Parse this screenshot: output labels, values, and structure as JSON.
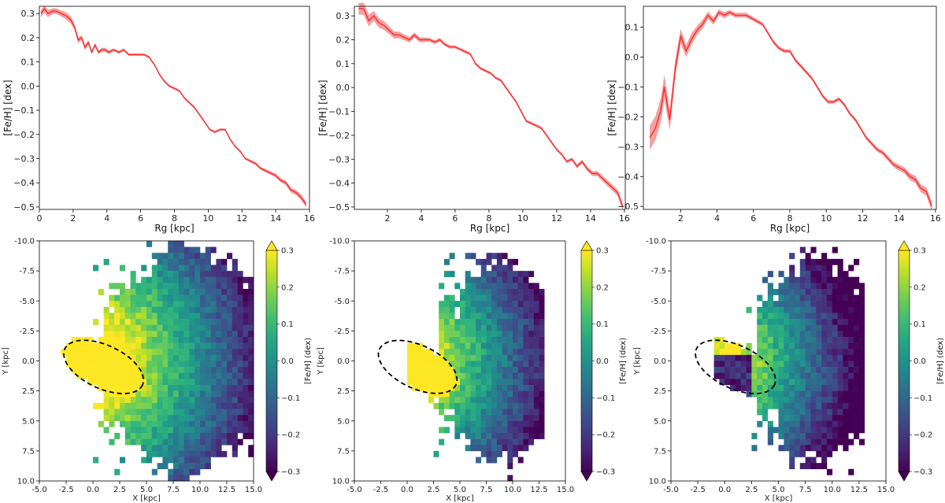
{
  "chart_data": [
    {
      "type": "line",
      "panel": "top-left",
      "xlabel": "Rg [kpc]",
      "ylabel": "[Fe/H] [dex]",
      "xlim": [
        0,
        16
      ],
      "ylim": [
        -0.51,
        0.33
      ],
      "xticks": [
        0,
        2,
        4,
        6,
        8,
        10,
        12,
        14,
        16
      ],
      "yticks": [
        -0.5,
        -0.4,
        -0.3,
        -0.2,
        -0.1,
        0.0,
        0.1,
        0.2,
        0.3
      ],
      "line_color": "#ff2a2a",
      "band_color": "#f4a0a0",
      "series": [
        {
          "x": [
            0.1,
            0.3,
            0.5,
            0.8,
            1.0,
            1.3,
            1.6,
            1.9,
            2.1,
            2.3,
            2.5,
            2.7,
            2.9,
            3.1,
            3.3,
            3.5,
            3.7,
            3.9,
            4.1,
            4.4,
            4.7,
            5.0,
            5.3,
            5.6,
            5.9,
            6.2,
            6.5,
            6.8,
            7.1,
            7.4,
            7.7,
            8.0,
            8.3,
            8.6,
            8.9,
            9.2,
            9.5,
            9.8,
            10.1,
            10.4,
            10.7,
            11.0,
            11.3,
            11.6,
            11.9,
            12.2,
            12.5,
            12.8,
            13.1,
            13.4,
            13.7,
            14.0,
            14.3,
            14.6,
            14.9,
            15.2,
            15.5,
            15.8
          ],
          "y": [
            0.3,
            0.32,
            0.3,
            0.31,
            0.31,
            0.3,
            0.29,
            0.27,
            0.24,
            0.19,
            0.2,
            0.16,
            0.18,
            0.14,
            0.17,
            0.14,
            0.15,
            0.15,
            0.14,
            0.15,
            0.14,
            0.15,
            0.13,
            0.13,
            0.13,
            0.13,
            0.12,
            0.09,
            0.05,
            0.02,
            0.0,
            -0.01,
            -0.02,
            -0.05,
            -0.07,
            -0.09,
            -0.12,
            -0.15,
            -0.18,
            -0.19,
            -0.18,
            -0.18,
            -0.22,
            -0.25,
            -0.27,
            -0.3,
            -0.31,
            -0.32,
            -0.34,
            -0.35,
            -0.36,
            -0.37,
            -0.39,
            -0.4,
            -0.43,
            -0.44,
            -0.46,
            -0.49
          ],
          "err": [
            0.015,
            0.015,
            0.015,
            0.012,
            0.012,
            0.012,
            0.015,
            0.015,
            0.012,
            0.012,
            0.01,
            0.01,
            0.01,
            0.008,
            0.008,
            0.008,
            0.008,
            0.008,
            0.008,
            0.006,
            0.006,
            0.006,
            0.005,
            0.005,
            0.005,
            0.005,
            0.005,
            0.005,
            0.005,
            0.005,
            0.005,
            0.005,
            0.005,
            0.005,
            0.005,
            0.005,
            0.005,
            0.005,
            0.005,
            0.005,
            0.005,
            0.005,
            0.005,
            0.005,
            0.005,
            0.005,
            0.006,
            0.006,
            0.006,
            0.007,
            0.007,
            0.008,
            0.008,
            0.009,
            0.01,
            0.01,
            0.012,
            0.012
          ]
        }
      ]
    },
    {
      "type": "line",
      "panel": "top-middle",
      "xlabel": "Rg [kpc]",
      "ylabel": "[Fe/H] [dex]",
      "xlim": [
        0.05,
        16.05
      ],
      "ylim": [
        -0.51,
        0.34
      ],
      "xticks": [
        2,
        4,
        6,
        8,
        10,
        12,
        14,
        16
      ],
      "yticks": [
        -0.5,
        -0.4,
        -0.3,
        -0.2,
        -0.1,
        0.0,
        0.1,
        0.2,
        0.3
      ],
      "line_color": "#ff2a2a",
      "band_color": "#f4a0a0",
      "series": [
        {
          "x": [
            0.3,
            0.6,
            0.9,
            1.2,
            1.5,
            1.8,
            2.1,
            2.4,
            2.7,
            3.0,
            3.3,
            3.6,
            3.9,
            4.2,
            4.5,
            4.8,
            5.1,
            5.4,
            5.7,
            6.0,
            6.3,
            6.6,
            6.9,
            7.2,
            7.5,
            7.8,
            8.1,
            8.4,
            8.7,
            9.0,
            9.3,
            9.6,
            9.9,
            10.2,
            10.5,
            10.8,
            11.1,
            11.4,
            11.7,
            12.0,
            12.3,
            12.6,
            12.9,
            13.2,
            13.5,
            13.8,
            14.1,
            14.4,
            14.7,
            15.0,
            15.3,
            15.6,
            15.9
          ],
          "y": [
            0.33,
            0.33,
            0.28,
            0.3,
            0.27,
            0.26,
            0.24,
            0.22,
            0.22,
            0.21,
            0.2,
            0.22,
            0.2,
            0.2,
            0.2,
            0.19,
            0.2,
            0.18,
            0.17,
            0.17,
            0.16,
            0.15,
            0.14,
            0.1,
            0.08,
            0.07,
            0.06,
            0.04,
            0.03,
            0.0,
            -0.03,
            -0.06,
            -0.1,
            -0.14,
            -0.15,
            -0.16,
            -0.17,
            -0.2,
            -0.23,
            -0.26,
            -0.28,
            -0.31,
            -0.3,
            -0.33,
            -0.31,
            -0.34,
            -0.36,
            -0.36,
            -0.38,
            -0.4,
            -0.42,
            -0.44,
            -0.5
          ],
          "err": [
            0.025,
            0.025,
            0.025,
            0.02,
            0.02,
            0.018,
            0.016,
            0.015,
            0.014,
            0.012,
            0.012,
            0.01,
            0.01,
            0.01,
            0.008,
            0.008,
            0.008,
            0.007,
            0.007,
            0.006,
            0.006,
            0.006,
            0.006,
            0.006,
            0.006,
            0.006,
            0.006,
            0.006,
            0.006,
            0.006,
            0.006,
            0.006,
            0.006,
            0.006,
            0.006,
            0.006,
            0.006,
            0.006,
            0.006,
            0.006,
            0.006,
            0.007,
            0.007,
            0.008,
            0.008,
            0.009,
            0.01,
            0.01,
            0.012,
            0.012,
            0.013,
            0.014,
            0.015
          ]
        }
      ]
    },
    {
      "type": "line",
      "panel": "top-right",
      "xlabel": "Rg [kpc]",
      "ylabel": "[Fe/H] [dex]",
      "xlim": [
        -0.05,
        16.05
      ],
      "ylim": [
        -0.51,
        0.17
      ],
      "xticks": [
        2,
        4,
        6,
        8,
        10,
        12,
        14,
        16
      ],
      "yticks": [
        -0.5,
        -0.4,
        -0.3,
        -0.2,
        -0.1,
        0.0,
        0.1
      ],
      "line_color": "#ff2a2a",
      "band_color": "#f4a0a0",
      "series": [
        {
          "x": [
            0.3,
            0.6,
            0.9,
            1.1,
            1.4,
            1.7,
            2.0,
            2.3,
            2.6,
            2.9,
            3.2,
            3.5,
            3.8,
            4.1,
            4.4,
            4.7,
            5.0,
            5.3,
            5.6,
            5.9,
            6.2,
            6.5,
            6.8,
            7.1,
            7.4,
            7.7,
            8.0,
            8.3,
            8.6,
            8.9,
            9.2,
            9.5,
            9.8,
            10.1,
            10.4,
            10.7,
            11.0,
            11.3,
            11.6,
            11.9,
            12.2,
            12.5,
            12.8,
            13.1,
            13.4,
            13.7,
            14.0,
            14.3,
            14.6,
            14.9,
            15.2,
            15.5,
            15.8
          ],
          "y": [
            -0.27,
            -0.24,
            -0.18,
            -0.1,
            -0.21,
            -0.04,
            0.07,
            0.02,
            0.06,
            0.09,
            0.11,
            0.14,
            0.12,
            0.15,
            0.14,
            0.15,
            0.14,
            0.14,
            0.14,
            0.13,
            0.12,
            0.11,
            0.08,
            0.05,
            0.03,
            0.02,
            0.02,
            -0.01,
            -0.03,
            -0.05,
            -0.07,
            -0.1,
            -0.13,
            -0.15,
            -0.15,
            -0.14,
            -0.16,
            -0.19,
            -0.21,
            -0.24,
            -0.27,
            -0.29,
            -0.31,
            -0.32,
            -0.34,
            -0.36,
            -0.37,
            -0.38,
            -0.4,
            -0.41,
            -0.44,
            -0.45,
            -0.5
          ],
          "err": [
            0.04,
            0.04,
            0.04,
            0.04,
            0.035,
            0.03,
            0.025,
            0.02,
            0.02,
            0.015,
            0.015,
            0.012,
            0.012,
            0.01,
            0.01,
            0.008,
            0.008,
            0.008,
            0.008,
            0.007,
            0.007,
            0.006,
            0.006,
            0.006,
            0.006,
            0.006,
            0.006,
            0.006,
            0.006,
            0.006,
            0.006,
            0.006,
            0.006,
            0.006,
            0.006,
            0.006,
            0.006,
            0.006,
            0.006,
            0.006,
            0.006,
            0.007,
            0.007,
            0.008,
            0.008,
            0.009,
            0.01,
            0.01,
            0.012,
            0.012,
            0.013,
            0.014,
            0.015
          ]
        }
      ]
    },
    {
      "type": "heatmap",
      "panel": "bottom-left",
      "xlabel": "X [kpc]",
      "ylabel": "Y [kpc]",
      "colorbar_label": "[Fe/H] (dex)",
      "xlim": [
        -5,
        15
      ],
      "ylim": [
        10,
        -10
      ],
      "xticks": [
        "-5.0",
        "-2.5",
        "0.0",
        "2.5",
        "5.0",
        "7.5",
        "10.0",
        "12.5",
        "15.0"
      ],
      "yticks": [
        "-10.0",
        "-7.5",
        "-5.0",
        "-2.5",
        "0.0",
        "2.5",
        "5.0",
        "7.5",
        "10.0"
      ],
      "colorbar_ticks": [
        "0.3",
        "0.2",
        "0.1",
        "0.0",
        "−0.1",
        "−0.2",
        "−0.3"
      ],
      "vmin": -0.3,
      "vmax": 0.3,
      "colormap": "viridis",
      "ellipse": {
        "cx": 1.0,
        "cy": 0.5,
        "rx": 4.0,
        "ry": 1.8,
        "angle_deg": 25
      },
      "profile": {
        "a": 0.45,
        "b": 0.046,
        "bar_boost": 0.22
      },
      "extent": {
        "xmin": 1.2,
        "xmax": 15.0,
        "halfwidth_base": 6.5,
        "halfwidth_peak": 9.8,
        "bar_xmin": -3.5,
        "fringe_count": 40
      },
      "seed": 7
    },
    {
      "type": "heatmap",
      "panel": "bottom-middle",
      "xlabel": "X [kpc]",
      "ylabel": "Y [kpc]",
      "colorbar_label": "[Fe/H] (dex)",
      "xlim": [
        -5,
        15
      ],
      "ylim": [
        10,
        -10
      ],
      "xticks": [
        "-5.0",
        "-2.5",
        "0.0",
        "2.5",
        "5.0",
        "7.5",
        "10.0",
        "12.5",
        "15.0"
      ],
      "yticks": [
        "-10.0",
        "-7.5",
        "-5.0",
        "-2.5",
        "0.0",
        "2.5",
        "5.0",
        "7.5",
        "10.0"
      ],
      "colorbar_ticks": [
        "0.3",
        "0.2",
        "0.1",
        "0.0",
        "−0.1",
        "−0.2",
        "−0.3"
      ],
      "vmin": -0.3,
      "vmax": 0.3,
      "colormap": "viridis",
      "ellipse": {
        "cx": 1.0,
        "cy": 0.5,
        "rx": 4.0,
        "ry": 1.8,
        "angle_deg": 25
      },
      "profile": {
        "a": 0.42,
        "b": 0.052,
        "bar_boost": 0.22
      },
      "extent": {
        "xmin": 3.0,
        "xmax": 13.0,
        "halfwidth_base": 5.5,
        "halfwidth_peak": 8.5,
        "bar_xmin": 0.0,
        "fringe_count": 28
      },
      "seed": 21
    },
    {
      "type": "heatmap",
      "panel": "bottom-right",
      "xlabel": "X [kpc]",
      "ylabel": "Y [kpc]",
      "colorbar_label": "[Fe/H] (dex)",
      "xlim": [
        -5,
        15
      ],
      "ylim": [
        10,
        -10
      ],
      "xticks": [
        "-5.0",
        "-2.5",
        "0.0",
        "2.5",
        "5.0",
        "7.5",
        "10.0",
        "12.5",
        "15.0"
      ],
      "yticks": [
        "-10.0",
        "-7.5",
        "-5.0",
        "-2.5",
        "0.0",
        "2.5",
        "5.0",
        "7.5",
        "10.0"
      ],
      "colorbar_ticks": [
        "0.3",
        "0.2",
        "0.1",
        "0.0",
        "−0.1",
        "−0.2",
        "−0.3"
      ],
      "vmin": -0.3,
      "vmax": 0.3,
      "colormap": "viridis",
      "ellipse": {
        "cx": 1.0,
        "cy": 0.5,
        "rx": 4.0,
        "ry": 1.8,
        "angle_deg": 25
      },
      "profile": {
        "a": 0.36,
        "b": 0.055,
        "bar_boost": 0.0
      },
      "extent": {
        "xmin": 3.0,
        "xmax": 13.0,
        "halfwidth_base": 5.5,
        "halfwidth_peak": 8.5,
        "bar_xmin": -1.0,
        "fringe_count": 24
      },
      "seed": 33
    }
  ]
}
